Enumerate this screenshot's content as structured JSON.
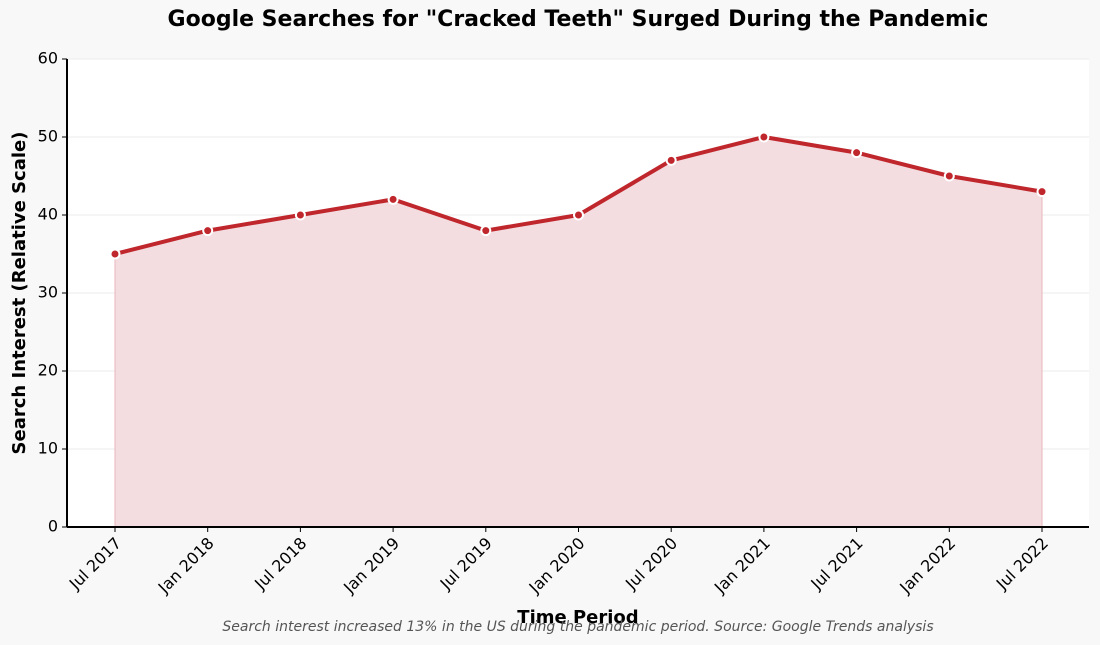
{
  "chart_data": {
    "type": "area_line",
    "title": "Google Searches for \"Cracked Teeth\" Surged During the Pandemic",
    "x_label": "Time Period",
    "y_label": "Search Interest (Relative Scale)",
    "footnote": "Search interest increased 13% in the US during the pandemic period. Source: Google Trends analysis",
    "categories": [
      "Jul 2017",
      "Jan 2018",
      "Jul 2018",
      "Jan 2019",
      "Jul 2019",
      "Jan 2020",
      "Jul 2020",
      "Jan 2021",
      "Jul 2021",
      "Jan 2022",
      "Jul 2022"
    ],
    "values": [
      35,
      38,
      40,
      42,
      38,
      40,
      47,
      50,
      48,
      45,
      43
    ],
    "color": "#c0272d",
    "fill_color": "#f3dde0",
    "ylim": [
      0,
      60
    ],
    "yticks": [
      0,
      10,
      20,
      30,
      40,
      50,
      60
    ],
    "grid": true
  }
}
